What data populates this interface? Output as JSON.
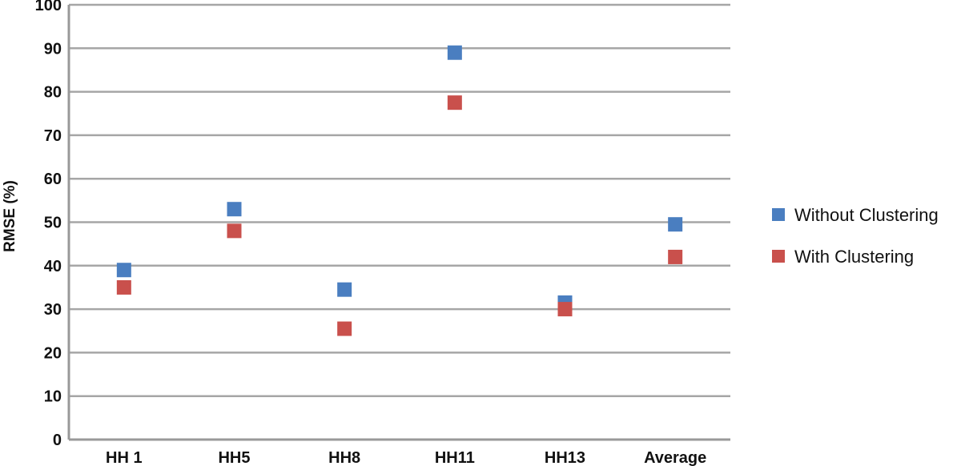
{
  "chart_data": {
    "type": "scatter",
    "title": "",
    "xlabel": "",
    "ylabel": "RMSE (%)",
    "categories": [
      "HH 1",
      "HH5",
      "HH8",
      "HH11",
      "HH13",
      "Average"
    ],
    "ylim": [
      0,
      100
    ],
    "yticks": [
      0,
      10,
      20,
      30,
      40,
      50,
      60,
      70,
      80,
      90,
      100
    ],
    "grid": true,
    "legend_position": "right",
    "series": [
      {
        "name": "Without Clustering",
        "color": "#4a7ec0",
        "values": [
          39,
          53,
          34.5,
          89,
          31.5,
          49.5
        ]
      },
      {
        "name": "With Clustering",
        "color": "#c9504c",
        "values": [
          35,
          48,
          25.5,
          77.5,
          30,
          42
        ]
      }
    ]
  }
}
